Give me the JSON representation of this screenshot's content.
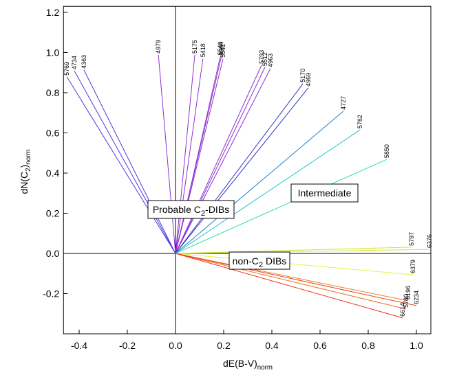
{
  "chart_data": {
    "type": "vector",
    "x_label": {
      "text": "dE(B-V)",
      "sub": "norm"
    },
    "y_label": {
      "text": "dN(C",
      "sub": "2",
      "tail": ")",
      "sub2": "norm"
    },
    "xlim": [
      -0.465,
      1.06
    ],
    "ylim": [
      -0.4,
      1.23
    ],
    "xticks": [
      {
        "value": -0.4,
        "label": "-0.4"
      },
      {
        "value": -0.2,
        "label": "-0.2"
      },
      {
        "value": 0,
        "label": "0.0"
      },
      {
        "value": 0.2,
        "label": "0.2"
      },
      {
        "value": 0.4,
        "label": "0.4"
      },
      {
        "value": 0.6,
        "label": "0.6"
      },
      {
        "value": 0.8,
        "label": "0.8"
      },
      {
        "value": 1,
        "label": "1.0"
      }
    ],
    "yticks": [
      {
        "value": -0.2,
        "label": "-0.2"
      },
      {
        "value": 0,
        "label": "0.0"
      },
      {
        "value": 0.2,
        "label": "0.2"
      },
      {
        "value": 0.4,
        "label": "0.4"
      },
      {
        "value": 0.6,
        "label": "0.6"
      },
      {
        "value": 0.8,
        "label": "0.8"
      },
      {
        "value": 1,
        "label": "1.0"
      },
      {
        "value": 1.2,
        "label": "1.2"
      }
    ],
    "zero_lines": true,
    "series": [
      {
        "name": "5769",
        "color": "#4a3ae0",
        "x": -0.451,
        "y": 0.879
      },
      {
        "name": "4734",
        "color": "#4a3ae0",
        "x": -0.42,
        "y": 0.909
      },
      {
        "name": "4363",
        "color": "#4a3ae0",
        "x": -0.38,
        "y": 0.913
      },
      {
        "name": "4979",
        "color": "#8a2ed8",
        "x": -0.071,
        "y": 0.988
      },
      {
        "name": "5175",
        "color": "#9030d0",
        "x": 0.08,
        "y": 0.988
      },
      {
        "name": "5418",
        "color": "#9030d0",
        "x": 0.114,
        "y": 0.97
      },
      {
        "name": "5546",
        "color": "#9030d0",
        "x": 0.186,
        "y": 0.98
      },
      {
        "name": "4984",
        "color": "#9030d0",
        "x": 0.19,
        "y": 0.978
      },
      {
        "name": "5541",
        "color": "#9030d0",
        "x": 0.197,
        "y": 0.968
      },
      {
        "name": "5793",
        "color": "#8a2ed8",
        "x": 0.357,
        "y": 0.937
      },
      {
        "name": "5512",
        "color": "#8a2ed8",
        "x": 0.371,
        "y": 0.926
      },
      {
        "name": "4963",
        "color": "#8a2ed8",
        "x": 0.394,
        "y": 0.92
      },
      {
        "name": "5170",
        "color": "#3030c0",
        "x": 0.529,
        "y": 0.845
      },
      {
        "name": "4969",
        "color": "#3030c0",
        "x": 0.551,
        "y": 0.824
      },
      {
        "name": "4727",
        "color": "#2080c8",
        "x": 0.697,
        "y": 0.708
      },
      {
        "name": "5762",
        "color": "#20c0c8",
        "x": 0.766,
        "y": 0.615
      },
      {
        "name": "5850",
        "color": "#30e0a0",
        "x": 0.877,
        "y": 0.468
      },
      {
        "name": "5797",
        "color": "#c8e830",
        "x": 0.98,
        "y": 0.031
      },
      {
        "name": "6376",
        "color": "#e0e040",
        "x": 1.054,
        "y": 0.02
      },
      {
        "name": "6379",
        "color": "#e8f040",
        "x": 0.986,
        "y": -0.106
      },
      {
        "name": "6196",
        "color": "#f08020",
        "x": 0.966,
        "y": -0.236
      },
      {
        "name": "5780",
        "color": "#f07020",
        "x": 0.957,
        "y": -0.277
      },
      {
        "name": "6234",
        "color": "#e84020",
        "x": 1.0,
        "y": -0.26
      },
      {
        "name": "6614",
        "color": "#f03010",
        "x": 0.943,
        "y": -0.321
      }
    ],
    "annotations": [
      {
        "text": "Probable C",
        "sub": "2",
        "tail": "-DIBs"
      },
      {
        "text": "Intermediate"
      },
      {
        "text": "non-C",
        "sub": "2",
        "tail": " DIBs"
      }
    ]
  }
}
